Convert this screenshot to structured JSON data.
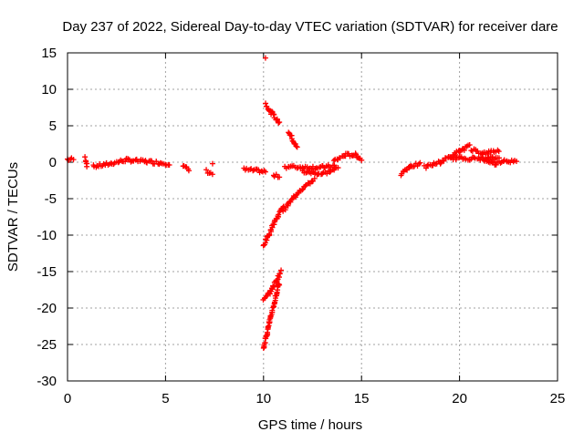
{
  "chart_data": {
    "type": "scatter",
    "title": "Day 237 of 2022, Sidereal Day-to-day VTEC variation (SDTVAR) for receiver dare",
    "xlabel": "GPS time / hours",
    "ylabel": "SDTVAR / TECUs",
    "xlim": [
      0,
      25
    ],
    "ylim": [
      -30,
      15
    ],
    "xticks": [
      0,
      5,
      10,
      15,
      20,
      25
    ],
    "yticks": [
      15,
      10,
      5,
      0,
      -5,
      -10,
      -15,
      -20,
      -25,
      -30
    ],
    "grid": true,
    "marker": "+",
    "color": "#ff0000",
    "series": [
      {
        "name": "SDTVAR",
        "segments": [
          {
            "x": [
              0.0,
              0.3
            ],
            "y": [
              0.4,
              0.4
            ]
          },
          {
            "x": [
              0.9,
              1.0
            ],
            "y": [
              0.6,
              -0.4
            ]
          },
          {
            "x": [
              1.3,
              2.0,
              3.0,
              4.0,
              5.2
            ],
            "y": [
              -0.6,
              -0.3,
              0.3,
              0.1,
              -0.2
            ]
          },
          {
            "x": [
              5.9,
              6.2
            ],
            "y": [
              -0.5,
              -1.1
            ]
          },
          {
            "x": [
              7.1,
              7.4
            ],
            "y": [
              -1.2,
              -1.6
            ]
          },
          {
            "x": [
              9.0,
              10.1
            ],
            "y": [
              -1.0,
              -1.3
            ]
          },
          {
            "x": [
              10.5,
              10.8
            ],
            "y": [
              -1.9,
              -1.9
            ]
          },
          {
            "x": [
              11.1,
              12.0,
              13.0,
              13.6
            ],
            "y": [
              -0.6,
              -0.7,
              -0.7,
              -0.5
            ]
          },
          {
            "x": [
              13.6,
              14.2,
              14.7,
              15.0
            ],
            "y": [
              0.2,
              1.0,
              1.0,
              0.4
            ]
          },
          {
            "x": [
              10.1,
              10.4,
              10.8
            ],
            "y": [
              8.0,
              6.8,
              5.4
            ]
          },
          {
            "x": [
              11.3,
              11.7
            ],
            "y": [
              4.2,
              2.0
            ]
          },
          {
            "x": [
              12.0,
              13.0,
              13.8
            ],
            "y": [
              -1.3,
              -1.6,
              -0.8
            ]
          },
          {
            "x": [
              10.0,
              10.6,
              11.0
            ],
            "y": [
              -11.5,
              -8.0,
              -6.0
            ]
          },
          {
            "x": [
              11.0,
              11.8,
              12.6
            ],
            "y": [
              -6.6,
              -4.0,
              -2.3
            ]
          },
          {
            "x": [
              10.0,
              10.4,
              10.9
            ],
            "y": [
              -19.0,
              -17.5,
              -15.0
            ]
          },
          {
            "x": [
              10.0,
              10.3,
              10.8
            ],
            "y": [
              -25.5,
              -22.0,
              -16.5
            ]
          },
          {
            "x": [
              17.0,
              17.5,
              18.0
            ],
            "y": [
              -1.6,
              -0.5,
              -0.3
            ]
          },
          {
            "x": [
              18.2,
              19.0,
              20.0,
              20.5
            ],
            "y": [
              -0.7,
              0.0,
              1.5,
              2.2
            ]
          },
          {
            "x": [
              19.5,
              20.5,
              21.5,
              22.0
            ],
            "y": [
              0.6,
              0.5,
              0.5,
              0.6
            ]
          },
          {
            "x": [
              20.6,
              21.2,
              22.0
            ],
            "y": [
              1.8,
              1.2,
              1.6
            ]
          },
          {
            "x": [
              21.2,
              21.8,
              22.3,
              22.9
            ],
            "y": [
              0.4,
              -0.2,
              0.3,
              0.0
            ]
          }
        ],
        "isolated": [
          {
            "x": 10.1,
            "y": 14.3
          },
          {
            "x": 7.4,
            "y": -0.2
          }
        ]
      }
    ]
  }
}
